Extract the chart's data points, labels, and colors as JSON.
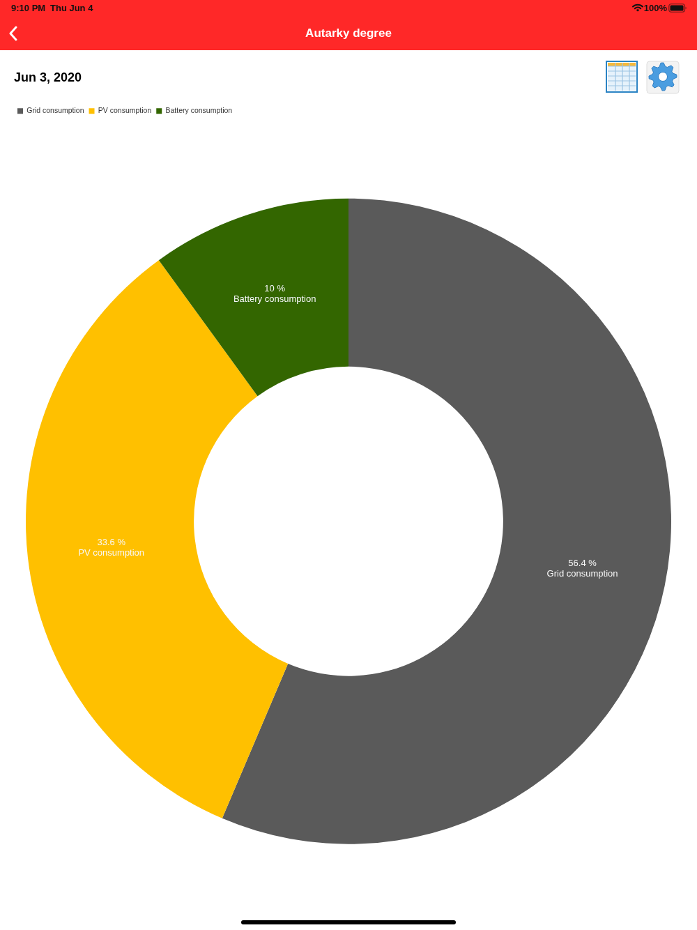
{
  "chart_data": {
    "type": "donut",
    "title": "Autarky degree",
    "subtitle": "Jun 3, 2020",
    "categories": [
      "Grid consumption",
      "PV consumption",
      "Battery consumption"
    ],
    "values": [
      56.4,
      33.6,
      10
    ],
    "colors": [
      "#5a5a5a",
      "#ffc000",
      "#336600"
    ],
    "value_labels": [
      "56.4 %",
      "33.6 %",
      "10 %"
    ],
    "legend": "top left",
    "annotations": [
      "9:10 PM",
      "Thu Jun 4",
      "100%"
    ]
  }
}
